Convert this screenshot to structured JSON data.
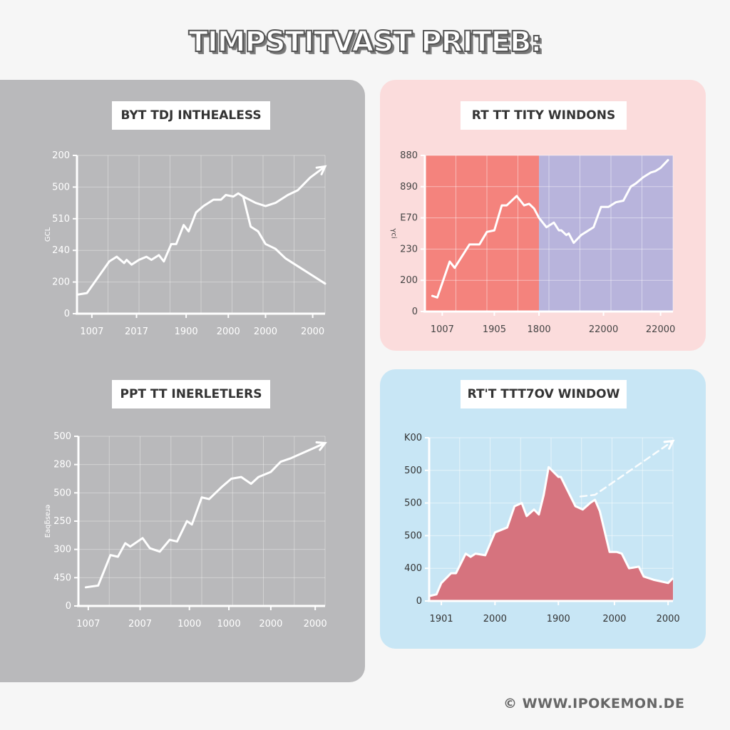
{
  "page": {
    "title": "TIMPSTITVAST PRITEB:",
    "footer": "© WWW.IPOKEMON.DE"
  },
  "colors": {
    "background": "#f6f6f6",
    "panel_gray": "#b9b9bb",
    "panel_pink": "#fbdcdc",
    "panel_blue": "#c8e6f5",
    "pink_region": "#f4837d",
    "purple_region": "#b8b4dc",
    "area_fill": "#d6737e",
    "line": "#ffffff"
  },
  "chart_data": [
    {
      "type": "line",
      "title": "BYT TDJ INTHEALESS",
      "xlabel": "",
      "ylabel": "GCL",
      "x_tick_labels": [
        "1007",
        "2017",
        "1900",
        "2000",
        "2000",
        "2000"
      ],
      "y_tick_labels": [
        "0",
        "200",
        "240",
        "510",
        "500",
        "200"
      ],
      "grid": true,
      "series": [
        {
          "name": "main",
          "x": [
            0,
            0.04,
            0.13,
            0.16,
            0.19,
            0.2,
            0.22,
            0.25,
            0.28,
            0.3,
            0.33,
            0.35,
            0.38,
            0.4,
            0.43,
            0.45,
            0.48,
            0.51,
            0.55,
            0.58,
            0.6,
            0.63,
            0.65,
            0.67
          ],
          "y": [
            0.12,
            0.13,
            0.33,
            0.36,
            0.32,
            0.34,
            0.31,
            0.34,
            0.36,
            0.34,
            0.37,
            0.33,
            0.44,
            0.44,
            0.56,
            0.52,
            0.64,
            0.68,
            0.72,
            0.72,
            0.75,
            0.74,
            0.76,
            0.74
          ]
        },
        {
          "name": "upward branch",
          "x": [
            0.67,
            0.72,
            0.76,
            0.8,
            0.85,
            0.89,
            0.94,
            1.0
          ],
          "y": [
            0.74,
            0.7,
            0.68,
            0.7,
            0.75,
            0.78,
            0.86,
            0.93
          ],
          "arrow": true
        },
        {
          "name": "downward branch",
          "x": [
            0.67,
            0.7,
            0.73,
            0.76,
            0.8,
            0.84,
            0.88,
            0.93,
            1.0
          ],
          "y": [
            0.74,
            0.55,
            0.52,
            0.44,
            0.41,
            0.35,
            0.31,
            0.26,
            0.19
          ]
        }
      ]
    },
    {
      "type": "line",
      "title": "RT TT TITY WINDONS",
      "xlabel": "",
      "ylabel": "ᴉɔ⅄",
      "x_tick_labels": [
        "1007",
        "1905",
        "1800",
        "22000",
        "22000"
      ],
      "y_tick_labels": [
        "0",
        "200",
        "230",
        "E70",
        "890",
        "880"
      ],
      "grid": true,
      "background_regions": [
        {
          "from": 0,
          "to": 0.46,
          "color": "#f4837d"
        },
        {
          "from": 0.46,
          "to": 1.0,
          "color": "#b8b4dc"
        }
      ],
      "series": [
        {
          "name": "main",
          "x": [
            0.03,
            0.05,
            0.1,
            0.12,
            0.18,
            0.22,
            0.25,
            0.28,
            0.31,
            0.33,
            0.37,
            0.4,
            0.42,
            0.44,
            0.46,
            0.49,
            0.52,
            0.54,
            0.55,
            0.57,
            0.58,
            0.6,
            0.63,
            0.68,
            0.71,
            0.74,
            0.77,
            0.8,
            0.83,
            0.85,
            0.88,
            0.91,
            0.93,
            0.95,
            0.98
          ],
          "y": [
            0.1,
            0.09,
            0.32,
            0.28,
            0.43,
            0.43,
            0.51,
            0.52,
            0.68,
            0.68,
            0.74,
            0.68,
            0.69,
            0.66,
            0.6,
            0.54,
            0.57,
            0.52,
            0.52,
            0.49,
            0.5,
            0.44,
            0.49,
            0.54,
            0.67,
            0.67,
            0.7,
            0.71,
            0.8,
            0.82,
            0.86,
            0.89,
            0.9,
            0.92,
            0.97
          ]
        }
      ]
    },
    {
      "type": "line",
      "title": "PPT TT INERLETLERS",
      "xlabel": "",
      "ylabel": "Eaqƃsɐɹǝ",
      "x_tick_labels": [
        "1007",
        "2007",
        "1000",
        "1000",
        "2000",
        "2000"
      ],
      "y_tick_labels": [
        "0",
        "450",
        "300",
        "250",
        "500",
        "280",
        "500"
      ],
      "grid": true,
      "series": [
        {
          "name": "main",
          "x": [
            0.03,
            0.08,
            0.13,
            0.16,
            0.19,
            0.21,
            0.26,
            0.29,
            0.33,
            0.37,
            0.4,
            0.44,
            0.46,
            0.5,
            0.53,
            0.58,
            0.62,
            0.66,
            0.7,
            0.73,
            0.78,
            0.82,
            0.86,
            1.0
          ],
          "y": [
            0.11,
            0.12,
            0.3,
            0.29,
            0.37,
            0.35,
            0.4,
            0.34,
            0.32,
            0.39,
            0.38,
            0.5,
            0.48,
            0.64,
            0.63,
            0.7,
            0.75,
            0.76,
            0.72,
            0.76,
            0.79,
            0.85,
            0.87,
            0.96
          ],
          "arrow": true
        }
      ]
    },
    {
      "type": "area",
      "title": "RT'T TTT7OV WINDOW",
      "xlabel": "",
      "ylabel": "",
      "x_tick_labels": [
        "1901",
        "2000",
        "1900",
        "2000",
        "2000"
      ],
      "y_tick_labels": [
        "0",
        "400",
        "500",
        "500",
        "500",
        "K00"
      ],
      "grid": true,
      "series": [
        {
          "name": "area",
          "x": [
            0,
            0.03,
            0.05,
            0.09,
            0.11,
            0.15,
            0.17,
            0.19,
            0.23,
            0.27,
            0.32,
            0.35,
            0.38,
            0.4,
            0.43,
            0.45,
            0.47,
            0.49,
            0.53,
            0.54,
            0.58,
            0.6,
            0.63,
            0.66,
            0.68,
            0.7,
            0.74,
            0.77,
            0.79,
            0.82,
            0.86,
            0.88,
            0.92,
            0.95,
            0.98,
            1.0
          ],
          "y": [
            0.03,
            0.04,
            0.11,
            0.17,
            0.17,
            0.29,
            0.27,
            0.29,
            0.28,
            0.42,
            0.45,
            0.58,
            0.6,
            0.52,
            0.56,
            0.53,
            0.65,
            0.82,
            0.76,
            0.76,
            0.64,
            0.58,
            0.56,
            0.6,
            0.62,
            0.55,
            0.3,
            0.3,
            0.29,
            0.2,
            0.21,
            0.15,
            0.13,
            0.12,
            0.11,
            0.14
          ]
        },
        {
          "name": "projection (dashed)",
          "x": [
            0.62,
            0.68,
            1.0
          ],
          "y": [
            0.64,
            0.65,
            0.98
          ],
          "dashed": true,
          "arrow": true
        }
      ]
    }
  ]
}
